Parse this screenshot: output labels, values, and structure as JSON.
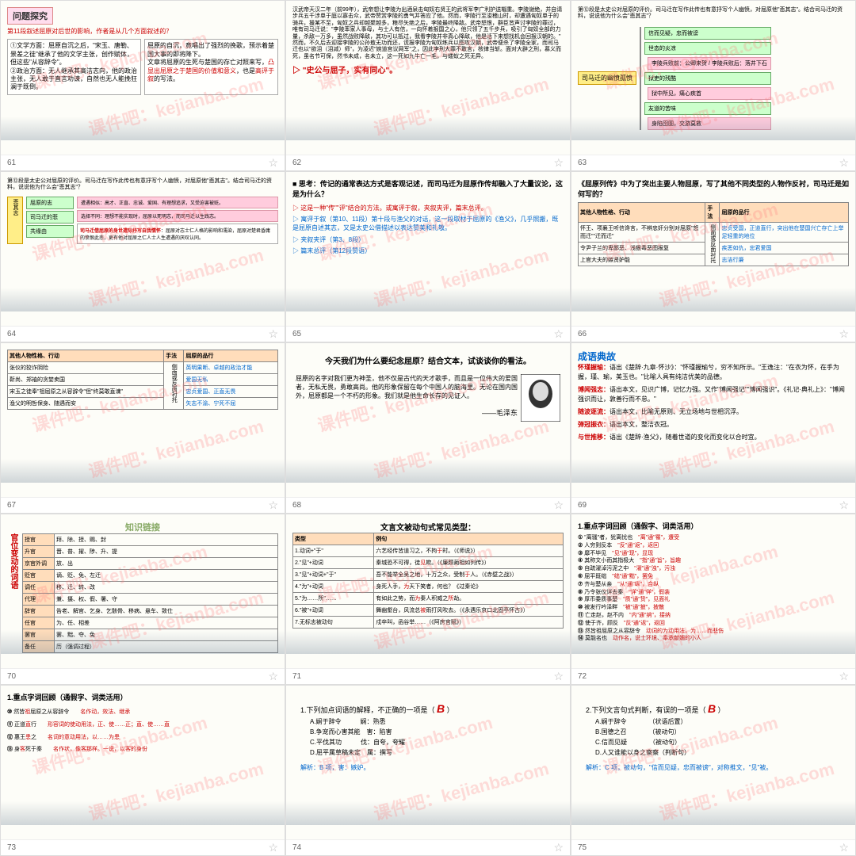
{
  "watermark": "课件吧：kejianba.com",
  "slides": [
    {
      "num": "61",
      "type": "problem",
      "title": "问题探究",
      "q": "第11段叙述屈原对后世的影响，作者是从几个方面叙述的？",
      "left": "①文学方面：屈原自沉之后，\"宋玉、唐勒、景差之徒\"继承了他的文学主张，创作赋体，但这些\"从容辞令\"。\n②政治方面：无人继承其高洁志向，他的政治主张，无人敢于直言劝谏，自然也无人能挽狂澜于既倒。",
      "right": "屈原的自沉，竟唱出了强烈的挽歌，预示着楚国大事的即将降下。\n文章将屈原的生死与楚国的存亡对照来写，凸显出屈原之于楚国的价值和意义，也是高评于叙的写法。"
    },
    {
      "num": "62",
      "type": "text",
      "body": "汉武帝天汉二年（前99年），武帝想让李陵为出酒泉击匈奴右贤王的武将军李广利护送辎重。李陵谢绝，并自请步兵五千涉单于庭以寡击众，武帝赞赏李陵的勇气并答应了他。然而，李陵行至浚稽山时，却遭遇匈奴单于的骑兵，援某不至，匈奴之兵却越聚越多，粮尽矢绝之后，李陵最终降敌。武帝怒恨，群臣皆声讨李陵的罪过，唯有司马迁说：\"李陵率家人事母，与士人有信，一向怀着报国之心，他只领了五千步兵，吸引了匈奴全部的力量，杀敌一万多，虽然战败降敌，其功可以抵过，我看李陵并非真心降敌，他是活下来想找机会回报汉朝的。\"\n然而，不久后去迎接李陵的公孙敖无功而还，谎报李陵为匈奴练兵以图攻汉朝，武帝便杀了李陵全家，而司马迁也以\"欲沮（沮减）师\"，为凌迟\"婉道宫议网军\"之，因此李刑大罪不敢言，核律当斩。面对大辟之刑，慕义而死，虽名节可保，然书未成，名未立，这一死如九牛亡一毛，与蝼蚁之死无异。",
      "quote": "\"史公与屈子，实有同心\"。"
    },
    {
      "num": "63",
      "type": "flow",
      "q": "第⑫段是太史公对屈原的评价。司马迁在写作此传也有意抒写个人幽愤，对屈原他\"悲其志\"。结合司马迁的资料，说说他为什么会\"悲其志\"？",
      "center": "司马迁的幽愤孤愤",
      "items": [
        "信而见疑，忠而被谤",
        "世态的炎凉 | 李陵兵败前：公卿来贺 / 李陵兵败后：落井下石",
        "狱吏的残酷 | 狱中所见，痛心疾首",
        "友道的苦味 | 身陷囹圄，交游莫救"
      ]
    },
    {
      "num": "64",
      "type": "flow2",
      "q": "第⑫段是太史公对屈原的评价。司马迁在写作此传也有意抒写个人幽愤，对屈原他\"悲其志\"。结合司马迁的资料，说说他为什么会\"悲其志\"？",
      "left": "悲其志",
      "items": [
        "屈原的志",
        "司马迁的悲",
        "共缘由"
      ],
      "notes": [
        "遭遇相似：高才、正直、忠诚、爱国、有理想追求，又受迫害被贬。",
        "选择不同：理想不能实现时，屈原以死明志，而司马迁以生践志。",
        "司马迁借屈原的身世遭际抒写自我情怀：屈原对志士仁人格的影响和濡染，屈原对楚君昏庸的愤恨此悲，更有他对屈原之仁人士人生遭遇的厌叹认同。"
      ]
    },
    {
      "num": "65",
      "type": "think",
      "q": "思考：传记的通常表达方式是客观记述，而司马迁为屈原作传却融入了大量议论，这是为什么？",
      "bullets": [
        "这是一种\"传\"\"评\"结合的方法。或寓评于叙，夹叙夹评，篇末总评。",
        "寓评于叙（第10、11段）第十段与渔父的对话，这一段取材于屈原的《渔父》，几乎照搬，既是屈原自述其志，又是太史公借描述以表达赞美和礼敬。",
        "夹叙夹评（第3、8段）",
        "篇末总评（第12段赞语）"
      ]
    },
    {
      "num": "66",
      "type": "table1",
      "title": "《屈原列传》中为了突出主要人物屈原，写了其他不同类型的人物作反衬，司马迁是如何写的？",
      "headers": [
        "其他人物性格、行动",
        "手法",
        "屈原的品行"
      ],
      "rows": [
        [
          "怀王、项襄王听信谗言，不辨忠奸分别对屈原\"怒而迁\"\"迁而迁\"",
          "侧面或反面衬托",
          "忠贞受国，正道直行，突出他在楚国兴亡存亡上举足轻重的地位"
        ],
        [
          "令尹子兰的卑鄙恶、浅狠毒恶图报复",
          "",
          "疾恶如仇，忠君爱国"
        ],
        [
          "上官大夫的嫉贤妒能",
          "",
          "志洁行廉"
        ]
      ]
    },
    {
      "num": "67",
      "type": "table2",
      "headers": [
        "其他人物性格、行动",
        "手法",
        "屈原的品行"
      ],
      "rows": [
        [
          "张仪的狡诈阴险",
          "侧面或反面衬托",
          "英明果断、卓越的政治才能"
        ],
        [
          "靳尚、郑袖的贪婪卖国",
          "",
          "爱国无私"
        ],
        [
          "宋玉之徒奉\"祖屈原之从容辞令\"但\"终莫敢直谏\"",
          "",
          "忠贞爱国、正直无畏"
        ],
        [
          "渔父的明哲保身、随遇而安",
          "",
          "矢志不渝、宁死不屈"
        ]
      ]
    },
    {
      "num": "68",
      "type": "essay",
      "title": "今天我们为什么要纪念屈原？结合文本，试谈谈你的看法。",
      "body": "屈原的名字对我们更为神圣，他不仅是古代的天才歌手，而且是一位伟大的爱国者，无私无畏，勇敢高尚。他的形象保留在每个中国人的脑海里。无论在国内国外，屈原都是一个不朽的形象。我们就是他生命长存的见证人。",
      "author": "——毛泽东"
    },
    {
      "num": "69",
      "type": "chengyu",
      "title": "成语典故",
      "items": [
        {
          "term": "怀瑾握瑜：",
          "def": "语出《楚辞·九章·怀沙》：\"怀瑾握瑜兮，穷不知所示。\"王逸注：\"在衣为怀，在手为握，瑾、瑜，美玉也。\"比喻人具有纯洁优美的品德。"
        },
        {
          "term": "博闻强志：",
          "def": "语出本文，见识广博，记忆力强。又作\"博闻强记\"\"博闻强识\"。《礼记·典礼上》：\"博闻强识而让，敦善行而不怠。\""
        },
        {
          "term": "随波逐流：",
          "def": "语出本文，比喻无原则、无立场地与世相沉浮。"
        },
        {
          "term": "弹冠振衣：",
          "def": "语出本文，整洁衣冠。"
        },
        {
          "term": "与世推移：",
          "def": "语出《楚辞·渔父》，随着世道的变化而变化以合时宜。"
        }
      ]
    },
    {
      "num": "70",
      "type": "vocab",
      "title": "知识链接",
      "vtitle": "官位变动的词语",
      "rows": [
        [
          "授官",
          "拜、除、授、赐、封"
        ],
        [
          "升官",
          "晋、普、擢、陟、升、提"
        ],
        [
          "京官外调",
          "放、出"
        ],
        [
          "贬官",
          "谪、贬、免、左迁"
        ],
        [
          "调任",
          "移、迁、转、改"
        ],
        [
          "代理",
          "兼、摄、权、假、署、守"
        ],
        [
          "辞官",
          "告老、解官、乞身、乞骸骨、移病、悬车、致仕"
        ],
        [
          "任官",
          "为、任、相差"
        ],
        [
          "罢官",
          "罢、黜、夺、免"
        ],
        [
          "备任",
          "历（强调过程）"
        ]
      ]
    },
    {
      "num": "71",
      "type": "grammar",
      "title": "文言文被动句式常见类型：",
      "headers": [
        "类型",
        "例句"
      ],
      "rows": [
        [
          "1.动词+\"于\"",
          "六艺经传皆道习之，不拘于时。（《师说》）"
        ],
        [
          "2.\"见\"+动词",
          "秦城恐不可得，徒见欺。（《廉颇蔺相如列传》）"
        ],
        [
          "3.\"见\"+动词+\"于\"",
          "吾不能举全吴之地，十万之众，受制于人。（《赤壁之战》）"
        ],
        [
          "4.\"为\"+动词",
          "身死人手，为天下笑者，何也？《过秦论》"
        ],
        [
          "5.\"为……所\"……",
          "有如此之势，而为秦人积威之所劫。"
        ],
        [
          "6.\"被\"+动词",
          "舞幽壑台，风流总被雨打风吹去。（《永遇乐京口北固亭怀古》）"
        ],
        [
          "7.无标志被动句",
          "戍卒叫，函谷举……（《阿房宫赋》）"
        ]
      ]
    },
    {
      "num": "72",
      "type": "review",
      "title": "1.重点字词回顾（通假字、词类活用）",
      "items": [
        {
          "n": "①",
          "t": "\"离骚\"者，犹离忧也",
          "a": "\"离\"通\"罹\"，遭受"
        },
        {
          "n": "②",
          "t": "人穷则反本",
          "a": "\"反\"通\"返\"，返回"
        },
        {
          "n": "③",
          "t": "靡不毕见",
          "a": "\"见\"通\"现\"，显现"
        },
        {
          "n": "④",
          "t": "其称文小而其指极大",
          "a": "\"指\"通\"旨\"，旨趣"
        },
        {
          "n": "⑤",
          "t": "自疏濯淖污泥之中",
          "a": "\"濯\"通\"浊\"，污浊"
        },
        {
          "n": "⑥",
          "t": "屈平既绌",
          "a": "\"绌\"通\"黜\"，罢免"
        },
        {
          "n": "⑦",
          "t": "齐与楚从亲",
          "a": "\"从\"通\"纵\"，合纵"
        },
        {
          "n": "⑧",
          "t": "乃令张仪详去秦",
          "a": "\"详\"通\"佯\"，假装"
        },
        {
          "n": "⑨",
          "t": "厚币委质事楚",
          "a": "\"质\"通\"贽\"，见面礼"
        },
        {
          "n": "⑩",
          "t": "被发行吟泽畔",
          "a": "\"被\"通\"披\"，披散"
        },
        {
          "n": "⑪",
          "t": "亡走赵，赵不内",
          "a": "\"内\"通\"纳\"，接纳"
        },
        {
          "n": "⑫",
          "t": "使于齐，顾反",
          "a": "\"反\"通\"返\"，返回"
        },
        {
          "n": "⑬",
          "t": "然皆祖屈原之从容辞令",
          "a": "动词的为动用法，为……而悲伤"
        },
        {
          "n": "⑭",
          "t": "莫能名也",
          "a": "动作名，说士环境、奉承献媚的小人"
        }
      ]
    },
    {
      "num": "73",
      "type": "review2",
      "title": "1.重点字词回顾（通假字、词类活用）",
      "items": [
        {
          "n": "⑩",
          "t": "然皆祖屈原之从容辞令",
          "a": "名作动，效法、继承"
        },
        {
          "n": "⑪",
          "t": "正道直行",
          "a": "形容词的使动用法，正、使……正；直、使……直"
        },
        {
          "n": "⑫",
          "t": "惠王患之",
          "a": "名词的意动用法，以……为患"
        },
        {
          "n": "⑬",
          "t": "身客死于秦",
          "a": "名作状，像客那样。一说，以客的身份"
        }
      ]
    },
    {
      "num": "74",
      "type": "quiz",
      "q": "1.下列加点词语的解释，不正确的一项是（　　）",
      "ans": "B",
      "opts": [
        "A.娴于辞令　　　娴：熟悉",
        "B.争宠而心害其能　害：陷害",
        "C.平伐其功　　　伐：自夸，夸耀",
        "D.屈平属草稿未定　属：撰写"
      ],
      "exp": "解析：B 项，害：嫉妒。"
    },
    {
      "num": "75",
      "type": "quiz",
      "q": "2.下列文言句式判断，有误的一项是（　　）",
      "ans": "B",
      "opts": [
        "A.娴于辞令　　　　（状语后置）",
        "B.国德之召　　　　（被动句）",
        "C.信而见疑　　　　（被动句）",
        "D.人又谁能以身之察察（判断句）"
      ],
      "exp": "解析：C 项，被动句，\"信而见疑，忠而被谤\"，对称推文，\"见\"被。"
    }
  ]
}
